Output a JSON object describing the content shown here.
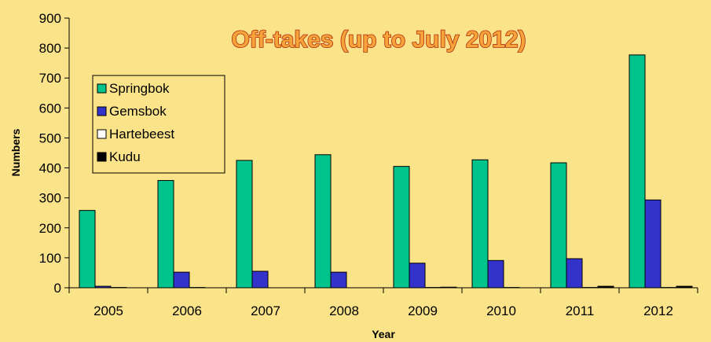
{
  "chart_data": {
    "type": "bar",
    "title": "Off-takes (up to July 2012)",
    "xlabel": "Year",
    "ylabel": "Numbers",
    "ylim": [
      0,
      900
    ],
    "yticks": [
      0,
      100,
      200,
      300,
      400,
      500,
      600,
      700,
      800,
      900
    ],
    "categories": [
      "2005",
      "2006",
      "2007",
      "2008",
      "2009",
      "2010",
      "2011",
      "2012"
    ],
    "series": [
      {
        "name": "Springbok",
        "color": "#00c48c",
        "values": [
          258,
          358,
          425,
          444,
          405,
          427,
          417,
          777
        ]
      },
      {
        "name": "Gemsbok",
        "color": "#3333cc",
        "values": [
          5,
          52,
          55,
          52,
          82,
          91,
          97,
          293
        ]
      },
      {
        "name": "Hartebeest",
        "color": "#ffffff",
        "values": [
          1,
          1,
          0,
          0,
          1,
          1,
          1,
          1
        ]
      },
      {
        "name": "Kudu",
        "color": "#000000",
        "values": [
          0,
          0,
          0,
          0,
          2,
          0,
          5,
          5
        ]
      }
    ],
    "legend_position": "upper-left",
    "grid": false
  }
}
